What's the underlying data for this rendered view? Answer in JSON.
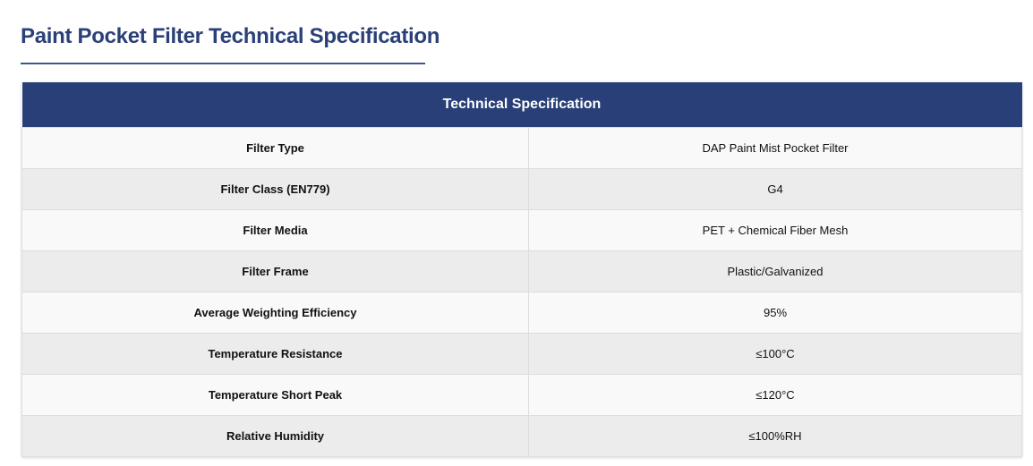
{
  "header": {
    "title": "Paint Pocket Filter Technical Specification"
  },
  "table": {
    "caption": "Technical Specification",
    "rows": [
      [
        "Filter Type",
        "DAP Paint Mist Pocket Filter"
      ],
      [
        "Filter Class (EN779)",
        "G4"
      ],
      [
        "Filter Media",
        "PET + Chemical Fiber Mesh"
      ],
      [
        "Filter Frame",
        "Plastic/Galvanized"
      ],
      [
        "Average Weighting Efficiency",
        "95%"
      ],
      [
        "Temperature Resistance",
        "≤100°C"
      ],
      [
        "Temperature Short Peak",
        "≤120°C"
      ],
      [
        "Relative Humidity",
        "≤100%RH"
      ]
    ]
  }
}
